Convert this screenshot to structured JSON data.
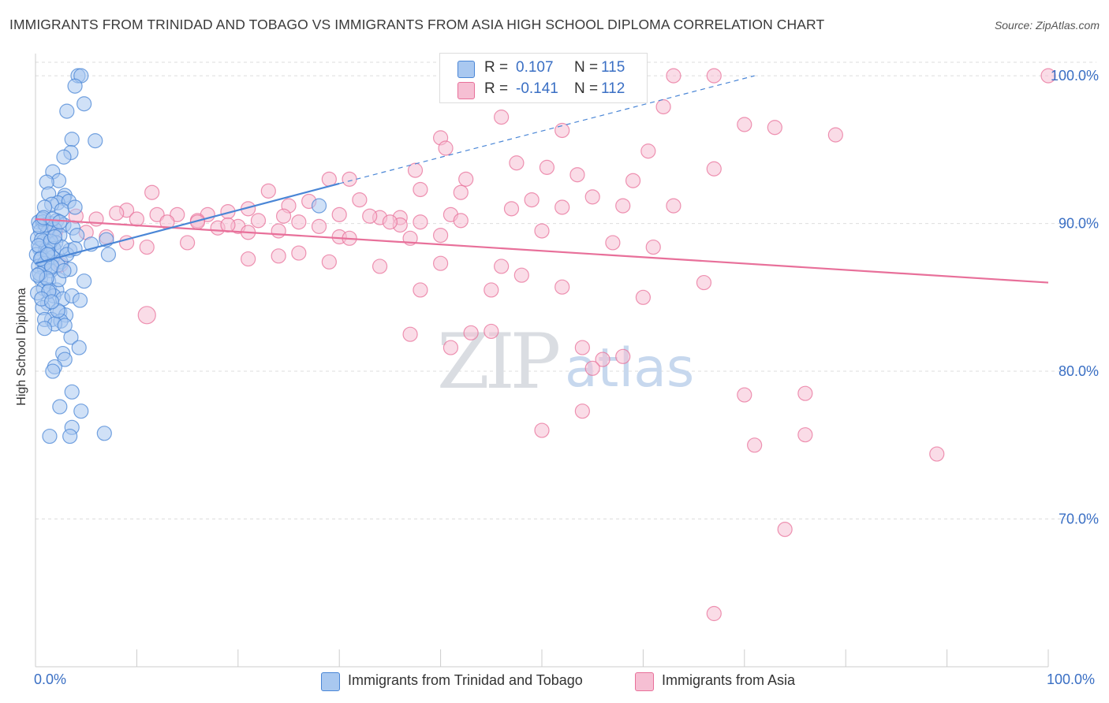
{
  "title": "IMMIGRANTS FROM TRINIDAD AND TOBAGO VS IMMIGRANTS FROM ASIA HIGH SCHOOL DIPLOMA CORRELATION CHART",
  "source": "Source: ZipAtlas.com",
  "watermark": {
    "zip": "ZIP",
    "atlas": "atlas"
  },
  "legend_top": {
    "blue": {
      "r_label": "R =",
      "r_value": "0.107",
      "n_label": "N =",
      "n_value": "115"
    },
    "pink": {
      "r_label": "R =",
      "r_value": "-0.141",
      "n_label": "N =",
      "n_value": "112"
    }
  },
  "colors": {
    "blue": "#4a86d6",
    "blue_fill": "#a9c8f0",
    "pink": "#e8709a",
    "pink_fill": "#f6bfd3",
    "axis_text": "#3a6fc4",
    "grid": "#dddddd"
  },
  "chart_data": {
    "type": "scatter",
    "title": "IMMIGRANTS FROM TRINIDAD AND TOBAGO VS IMMIGRANTS FROM ASIA HIGH SCHOOL DIPLOMA CORRELATION CHART",
    "xlabel": "",
    "ylabel": "High School Diploma",
    "xlim": [
      0,
      100
    ],
    "ylim": [
      60,
      101.5
    ],
    "x_tick_labels": [
      "0.0%",
      "100.0%"
    ],
    "y_ticks": [
      70,
      80,
      90,
      100
    ],
    "y_tick_labels": [
      "70.0%",
      "80.0%",
      "90.0%",
      "100.0%"
    ],
    "series": [
      {
        "name": "Immigrants from Trinidad and Tobago",
        "color": "blue",
        "R": 0.107,
        "N": 115,
        "trend": {
          "x0": 0,
          "y0": 87.3,
          "x1": 30,
          "y1": 92.7,
          "dash_x1": 71,
          "dash_y1": 100
        },
        "points": [
          [
            4.2,
            100
          ],
          [
            4.5,
            100
          ],
          [
            3.9,
            99.3
          ],
          [
            3.1,
            97.6
          ],
          [
            4.8,
            98.1
          ],
          [
            3.6,
            95.7
          ],
          [
            5.9,
            95.6
          ],
          [
            3.5,
            94.8
          ],
          [
            2.8,
            94.5
          ],
          [
            1.7,
            93.5
          ],
          [
            2.3,
            92.9
          ],
          [
            1.1,
            92.8
          ],
          [
            1.3,
            92
          ],
          [
            2.9,
            91.9
          ],
          [
            2.8,
            91.7
          ],
          [
            2.2,
            91.4
          ],
          [
            3.3,
            91.5
          ],
          [
            1.6,
            91.3
          ],
          [
            0.9,
            91.1
          ],
          [
            2.6,
            90.9
          ],
          [
            3.9,
            91.1
          ],
          [
            0.3,
            90.1
          ],
          [
            0.7,
            90.1
          ],
          [
            1.5,
            90
          ],
          [
            2.1,
            90.2
          ],
          [
            2.8,
            89.9
          ],
          [
            3.7,
            89.7
          ],
          [
            0.5,
            89.5
          ],
          [
            1.2,
            89.4
          ],
          [
            1.9,
            89.6
          ],
          [
            2.4,
            89.2
          ],
          [
            0.2,
            89
          ],
          [
            0.8,
            88.8
          ],
          [
            1.4,
            88.6
          ],
          [
            2,
            88.7
          ],
          [
            4.1,
            89.2
          ],
          [
            0.4,
            88.3
          ],
          [
            1,
            88.2
          ],
          [
            1.8,
            88.3
          ],
          [
            3.4,
            88.2
          ],
          [
            5.5,
            88.6
          ],
          [
            7,
            88.9
          ],
          [
            0.1,
            87.9
          ],
          [
            0.6,
            87.7
          ],
          [
            1.1,
            87.5
          ],
          [
            1.7,
            87.7
          ],
          [
            2.5,
            87.4
          ],
          [
            7.2,
            87.9
          ],
          [
            0.3,
            87.1
          ],
          [
            0.9,
            86.9
          ],
          [
            1.5,
            86.8
          ],
          [
            2.2,
            87.2
          ],
          [
            3.4,
            86.9
          ],
          [
            0.5,
            86.3
          ],
          [
            1.3,
            86.1
          ],
          [
            4.8,
            86.1
          ],
          [
            0.8,
            85.6
          ],
          [
            1.4,
            85.5
          ],
          [
            2.1,
            85.5
          ],
          [
            0.2,
            85.3
          ],
          [
            1.8,
            85.1
          ],
          [
            2.7,
            84.9
          ],
          [
            3.6,
            85.1
          ],
          [
            4.4,
            84.8
          ],
          [
            1.2,
            84.6
          ],
          [
            0.7,
            84.3
          ],
          [
            2.4,
            84
          ],
          [
            3,
            83.8
          ],
          [
            1.6,
            83.5
          ],
          [
            2.5,
            83.4
          ],
          [
            0.9,
            83.5
          ],
          [
            1.9,
            83.2
          ],
          [
            3.5,
            82.3
          ],
          [
            4.3,
            81.6
          ],
          [
            2.7,
            81.2
          ],
          [
            2.9,
            80.8
          ],
          [
            1.9,
            80.3
          ],
          [
            1.7,
            80
          ],
          [
            3.6,
            78.6
          ],
          [
            2.4,
            77.6
          ],
          [
            4.5,
            77.3
          ],
          [
            3.6,
            76.2
          ],
          [
            1.4,
            75.6
          ],
          [
            3.4,
            75.6
          ],
          [
            6.8,
            75.8
          ],
          [
            28,
            91.2
          ],
          [
            0.6,
            88.9
          ],
          [
            1.2,
            88.1
          ],
          [
            0.9,
            87.3
          ],
          [
            0.4,
            86.6
          ],
          [
            1.6,
            87.1
          ],
          [
            2.3,
            86.2
          ],
          [
            0.3,
            88.5
          ],
          [
            1,
            89.9
          ],
          [
            1.5,
            88.8
          ],
          [
            2.6,
            88.4
          ],
          [
            0.7,
            90.3
          ],
          [
            1.9,
            89.1
          ],
          [
            0.4,
            89.8
          ],
          [
            1.1,
            86.3
          ],
          [
            2.8,
            86.8
          ],
          [
            1.3,
            85.4
          ],
          [
            0.6,
            84.9
          ],
          [
            2.2,
            84.1
          ],
          [
            3.1,
            87.9
          ],
          [
            0.8,
            90.4
          ],
          [
            1.7,
            90.3
          ],
          [
            2.4,
            90.1
          ],
          [
            0.5,
            87.6
          ],
          [
            1.2,
            87.9
          ],
          [
            3.9,
            88.3
          ],
          [
            0.2,
            86.5
          ],
          [
            1.6,
            84.7
          ],
          [
            2.9,
            83.1
          ],
          [
            0.9,
            82.9
          ]
        ]
      },
      {
        "name": "Immigrants from Asia",
        "color": "pink",
        "R": -0.141,
        "N": 112,
        "trend": {
          "x0": 0,
          "y0": 90.3,
          "x1": 100,
          "y1": 86
        },
        "points": [
          [
            63,
            100
          ],
          [
            67,
            100
          ],
          [
            100,
            100
          ],
          [
            48,
            99
          ],
          [
            55,
            98.7
          ],
          [
            62,
            97.9
          ],
          [
            46,
            97.2
          ],
          [
            52,
            96.3
          ],
          [
            70,
            96.7
          ],
          [
            79,
            96
          ],
          [
            73,
            96.5
          ],
          [
            40,
            95.8
          ],
          [
            40.5,
            95.1
          ],
          [
            60.5,
            94.9
          ],
          [
            47.5,
            94.1
          ],
          [
            37.5,
            93.6
          ],
          [
            42.5,
            93
          ],
          [
            50.5,
            93.8
          ],
          [
            53.5,
            93.3
          ],
          [
            59,
            92.9
          ],
          [
            67,
            93.7
          ],
          [
            11.5,
            92.1
          ],
          [
            23,
            92.2
          ],
          [
            29,
            93
          ],
          [
            31,
            93
          ],
          [
            38,
            92.3
          ],
          [
            42,
            92.1
          ],
          [
            49,
            91.6
          ],
          [
            52,
            91.1
          ],
          [
            55,
            91.8
          ],
          [
            58,
            91.2
          ],
          [
            63,
            91.2
          ],
          [
            9,
            90.9
          ],
          [
            12,
            90.6
          ],
          [
            14,
            90.6
          ],
          [
            17,
            90.6
          ],
          [
            19,
            90.8
          ],
          [
            21,
            91
          ],
          [
            25,
            91.2
          ],
          [
            27,
            91.5
          ],
          [
            30,
            90.6
          ],
          [
            32,
            91.6
          ],
          [
            34,
            90.4
          ],
          [
            36,
            90.4
          ],
          [
            38,
            90.1
          ],
          [
            41,
            90.6
          ],
          [
            47,
            91
          ],
          [
            4,
            90.5
          ],
          [
            6,
            90.3
          ],
          [
            8,
            90.7
          ],
          [
            10,
            90.3
          ],
          [
            13,
            90.1
          ],
          [
            16,
            90.2
          ],
          [
            18,
            89.7
          ],
          [
            20,
            89.8
          ],
          [
            22,
            90.2
          ],
          [
            24,
            89.5
          ],
          [
            26,
            90.1
          ],
          [
            28,
            89.8
          ],
          [
            30,
            89.1
          ],
          [
            33,
            90.5
          ],
          [
            36,
            89.9
          ],
          [
            2,
            89.5
          ],
          [
            5,
            89.4
          ],
          [
            7,
            89.1
          ],
          [
            9,
            88.7
          ],
          [
            11,
            88.4
          ],
          [
            15,
            88.7
          ],
          [
            19,
            89.9
          ],
          [
            21,
            87.6
          ],
          [
            24,
            87.8
          ],
          [
            26,
            88
          ],
          [
            31,
            89
          ],
          [
            37,
            89
          ],
          [
            40,
            89.2
          ],
          [
            50,
            89.5
          ],
          [
            57,
            88.7
          ],
          [
            61,
            88.4
          ],
          [
            2.5,
            87.2
          ],
          [
            29,
            87.4
          ],
          [
            34,
            87.1
          ],
          [
            40,
            87.3
          ],
          [
            46,
            87.1
          ],
          [
            48,
            86.5
          ],
          [
            52,
            85.7
          ],
          [
            38,
            85.5
          ],
          [
            45,
            85.5
          ],
          [
            60,
            85
          ],
          [
            66,
            86
          ],
          [
            37,
            82.5
          ],
          [
            43,
            82.6
          ],
          [
            45,
            82.7
          ],
          [
            41,
            81.6
          ],
          [
            54,
            81.6
          ],
          [
            56,
            80.8
          ],
          [
            55,
            80.2
          ],
          [
            58,
            81
          ],
          [
            76,
            78.5
          ],
          [
            70,
            78.4
          ],
          [
            54,
            77.3
          ],
          [
            50,
            76
          ],
          [
            71,
            75
          ],
          [
            76,
            75.7
          ],
          [
            89,
            74.4
          ],
          [
            74,
            69.3
          ],
          [
            67,
            63.6
          ],
          [
            11,
            83.8
          ],
          [
            16,
            90.1
          ],
          [
            24.5,
            90.5
          ],
          [
            35,
            90.1
          ],
          [
            42,
            90.2
          ],
          [
            21,
            89.4
          ]
        ]
      }
    ]
  },
  "legend_bottom": [
    "Immigrants from Trinidad and Tobago",
    "Immigrants from Asia"
  ]
}
